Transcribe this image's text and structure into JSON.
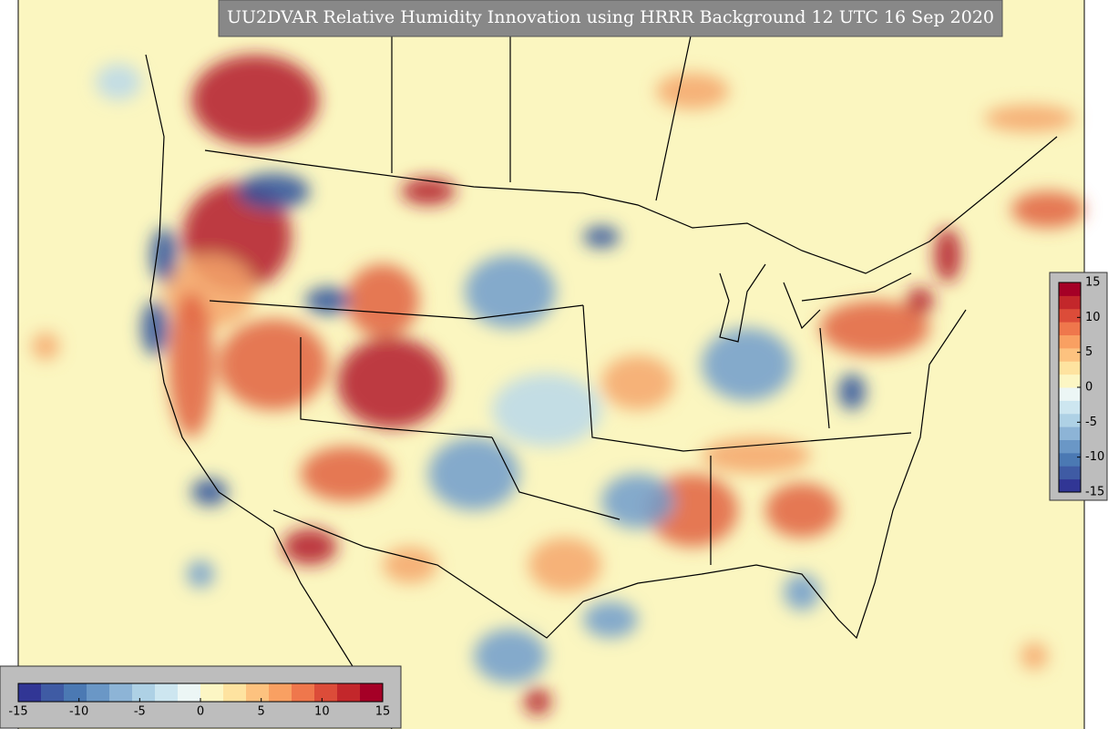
{
  "title": "UU2DVAR Relative Humidity Innovation using HRRR Background 12 UTC 16 Sep 2020",
  "colorbars": [
    {
      "orientation": "horizontal",
      "lim": [
        -15,
        15
      ],
      "ticks": [
        -15,
        -10,
        -5,
        0,
        5,
        10,
        15
      ]
    },
    {
      "orientation": "vertical",
      "lim": [
        -15,
        15
      ],
      "ticks": [
        -15,
        -10,
        -5,
        0,
        5,
        10,
        15
      ]
    }
  ]
}
